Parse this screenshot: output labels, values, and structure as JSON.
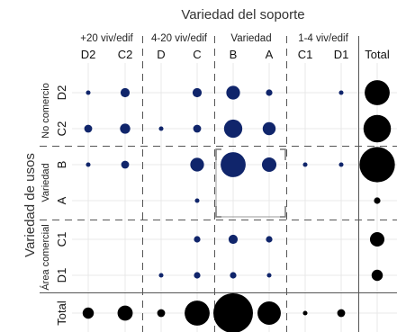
{
  "chart_data": {
    "type": "bubble-matrix",
    "title": "Variedad del soporte",
    "ylabel": "Variedad de usos",
    "column_groups": [
      {
        "label": "+20 viv/edif",
        "columns": [
          "D2",
          "C2"
        ]
      },
      {
        "label": "4-20 viv/edif",
        "columns": [
          "D",
          "C"
        ]
      },
      {
        "label": "Variedad",
        "columns": [
          "B",
          "A"
        ]
      },
      {
        "label": "1-4 viv/edif",
        "columns": [
          "C1",
          "D1"
        ]
      },
      {
        "label": "",
        "columns": [
          "Total"
        ]
      }
    ],
    "row_groups": [
      {
        "label": "No comercio",
        "rows": [
          "D2",
          "C2"
        ]
      },
      {
        "label": "Variedad",
        "rows": [
          "B",
          "A"
        ]
      },
      {
        "label": "Área comercial",
        "rows": [
          "C1",
          "D1"
        ]
      },
      {
        "label": "",
        "rows": [
          "Total"
        ]
      }
    ],
    "columns": [
      "D2",
      "C2",
      "D",
      "C",
      "B",
      "A",
      "C1",
      "D1",
      "Total"
    ],
    "rows": [
      "D2",
      "C2",
      "B",
      "A",
      "C1",
      "D1",
      "Total"
    ],
    "values": [
      [
        1,
        4,
        0,
        4,
        9,
        2,
        0,
        1,
        30
      ],
      [
        3,
        5,
        1,
        3,
        16,
        8,
        0,
        0,
        36
      ],
      [
        1,
        3,
        0,
        9,
        30,
        10,
        1,
        1,
        60
      ],
      [
        0,
        0,
        0,
        1,
        0,
        0,
        0,
        0,
        2
      ],
      [
        0,
        0,
        0,
        2,
        4,
        2,
        0,
        0,
        10
      ],
      [
        0,
        0,
        1,
        2,
        2,
        1,
        0,
        0,
        6
      ],
      [
        6,
        11,
        3,
        30,
        75,
        26,
        1,
        3,
        0
      ]
    ],
    "colors": {
      "inner": "#10256b",
      "total": "#000000"
    },
    "grid": true
  }
}
